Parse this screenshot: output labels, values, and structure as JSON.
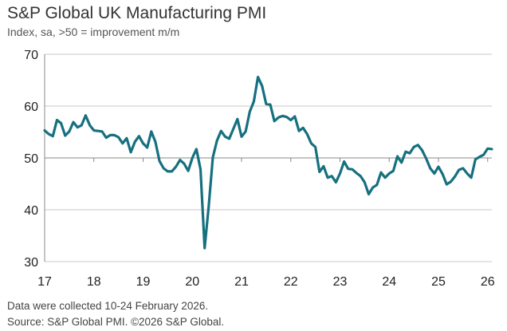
{
  "chart_data": {
    "type": "line",
    "title": "S&P Global UK Manufacturing PMI",
    "subtitle": "Index, sa, >50 = improvement m/m",
    "xlabel": "",
    "ylabel": "",
    "ylim": [
      30,
      70
    ],
    "yticks": [
      "30",
      "40",
      "50",
      "60",
      "70"
    ],
    "xticks": [
      "17",
      "18",
      "19",
      "20",
      "21",
      "22",
      "23",
      "24",
      "25",
      "26"
    ],
    "grid": true,
    "color": "#16707f",
    "start": "2017-01",
    "values": [
      55.3,
      54.6,
      54.2,
      57.3,
      56.7,
      54.3,
      55.1,
      56.9,
      55.9,
      56.3,
      58.2,
      56.3,
      55.3,
      55.2,
      55.1,
      53.9,
      54.4,
      54.4,
      54.0,
      52.8,
      53.8,
      51.1,
      53.1,
      54.2,
      52.8,
      52.0,
      55.1,
      53.1,
      49.4,
      48.0,
      47.4,
      47.4,
      48.3,
      49.6,
      48.9,
      47.5,
      50.0,
      51.7,
      47.8,
      32.6,
      40.7,
      50.1,
      53.3,
      55.2,
      54.1,
      53.7,
      55.6,
      57.5,
      54.1,
      55.1,
      58.9,
      60.9,
      65.6,
      63.9,
      60.4,
      60.3,
      57.1,
      57.8,
      58.1,
      57.9,
      57.3,
      58.0,
      55.2,
      55.8,
      54.6,
      52.8,
      52.1,
      47.3,
      48.4,
      46.2,
      46.5,
      45.3,
      47.0,
      49.3,
      47.9,
      47.8,
      47.1,
      46.5,
      45.3,
      43.0,
      44.3,
      44.8,
      47.2,
      46.2,
      47.0,
      47.5,
      50.3,
      49.1,
      51.2,
      50.9,
      52.1,
      52.5,
      51.5,
      49.9,
      48.0,
      47.0,
      48.3,
      46.9,
      44.9,
      45.4,
      46.4,
      47.7,
      48.0,
      47.0,
      46.2,
      49.7,
      50.2,
      50.6,
      51.8,
      51.7
    ]
  },
  "footer": {
    "note": "Data were collected 10-24 February 2026.",
    "source": "Source: S&P Global PMI. ©2026 S&P Global."
  }
}
